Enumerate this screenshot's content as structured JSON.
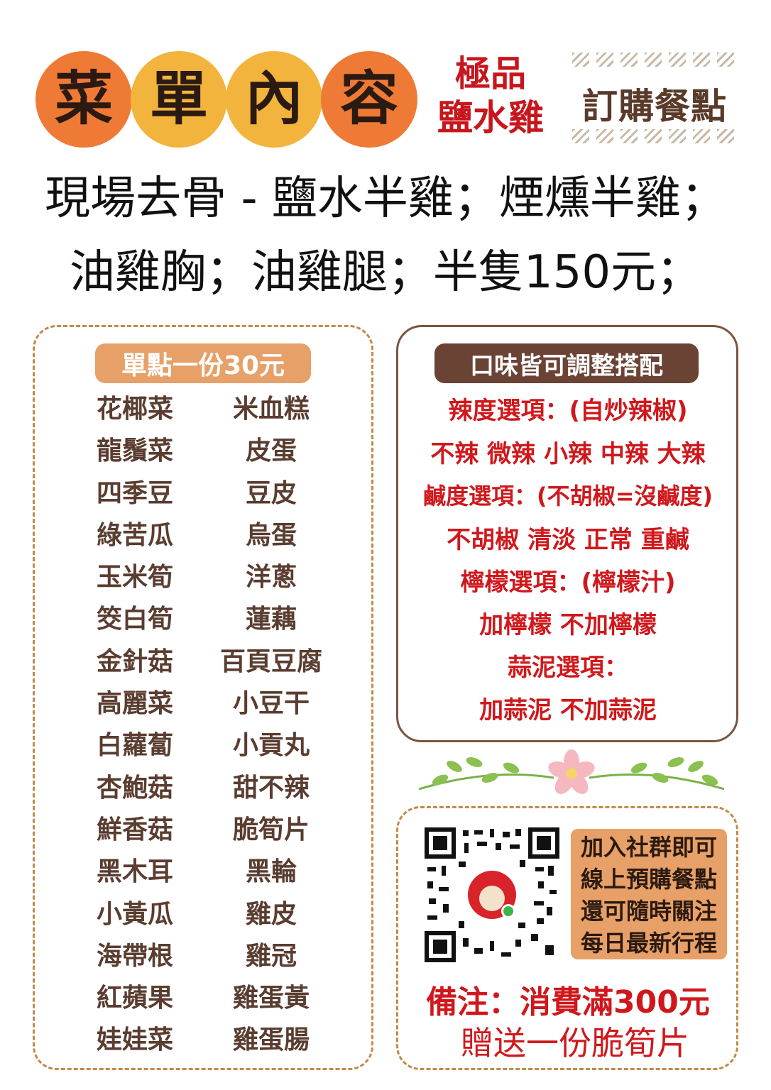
{
  "header": {
    "title_chars": [
      "菜",
      "單",
      "內",
      "容"
    ],
    "title_colors": [
      "#ef7a35",
      "#f2b43c",
      "#f2b43c",
      "#ef7a35"
    ],
    "tagline": [
      "極品",
      "鹽水雞"
    ],
    "order_label": "訂購餐點"
  },
  "intro": {
    "line1": "現場去骨 - 鹽水半雞；煙燻半雞；",
    "line2": "油雞胸；油雞腿；半隻150元；"
  },
  "menu": {
    "title": "單點一份30元",
    "title_bg": "#e6a068",
    "left_items": [
      "花椰菜",
      "龍鬚菜",
      "四季豆",
      "綠苦瓜",
      "玉米筍",
      "筊白筍",
      "金針菇",
      "高麗菜",
      "白蘿蔔",
      "杏鮑菇",
      "鮮香菇",
      "黑木耳",
      "小黃瓜",
      "海帶根",
      "紅蘋果",
      "娃娃菜"
    ],
    "right_items": [
      "米血糕",
      "皮蛋",
      "豆皮",
      "烏蛋",
      "洋蔥",
      "蓮藕",
      "百頁豆腐",
      "小豆干",
      "小貢丸",
      "甜不辣",
      "脆筍片",
      "黑輪",
      "雞皮",
      "雞冠",
      "雞蛋黃",
      "雞蛋腸"
    ]
  },
  "flavor": {
    "title": "口味皆可調整搭配",
    "title_bg": "#6b4335",
    "spicy_label": "辣度選項：(自炒辣椒)",
    "spicy_options": "不辣  微辣  小辣  中辣  大辣",
    "salt_label": "鹹度選項：(不胡椒=沒鹹度)",
    "salt_options": "不胡椒  清淡  正常  重鹹",
    "lemon_label": "檸檬選項：(檸檬汁)",
    "lemon_options": "加檸檬  不加檸檬",
    "garlic_label": "蒜泥選項：",
    "garlic_options": "加蒜泥  不加蒜泥"
  },
  "community": {
    "qr_icon": "qr-code-icon",
    "lines": [
      "加入社群即可",
      "線上預購餐點",
      "還可隨時關注",
      "每日最新行程"
    ],
    "note_title": "備注：消費滿300元",
    "note_sub": "贈送一份脆筍片"
  },
  "colors": {
    "accent_red": "#d0181c",
    "brown_text": "#5a3d30",
    "dashed_border": "#c18a4a"
  }
}
